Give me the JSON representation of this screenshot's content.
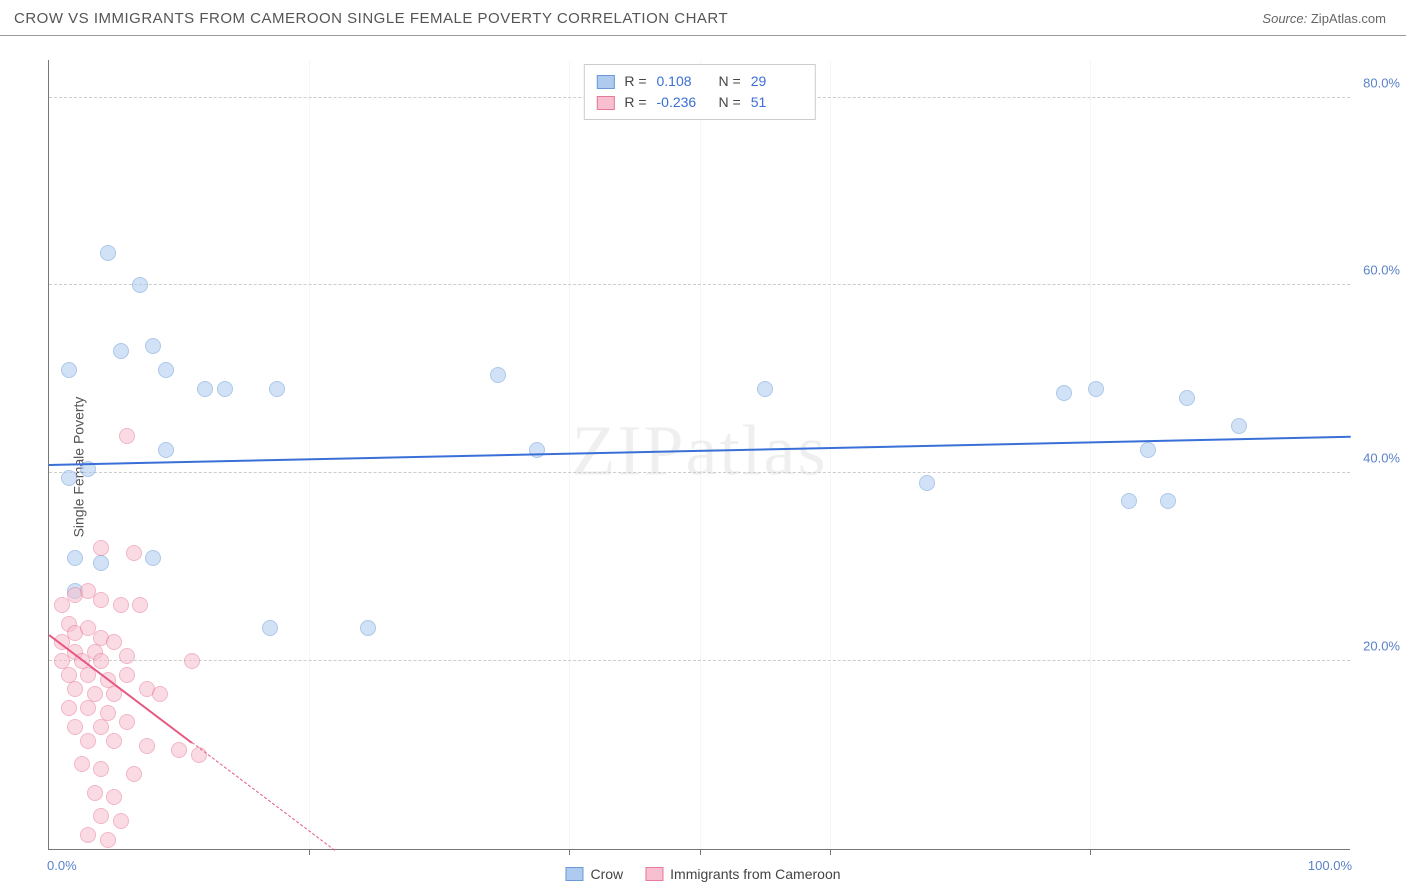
{
  "header": {
    "title": "CROW VS IMMIGRANTS FROM CAMEROON SINGLE FEMALE POVERTY CORRELATION CHART",
    "source_label": "Source:",
    "source_value": "ZipAtlas.com"
  },
  "ylabel": "Single Female Poverty",
  "watermark": "ZIPatlas",
  "chart": {
    "type": "scatter",
    "xlim": [
      0,
      100
    ],
    "ylim": [
      0,
      84
    ],
    "x_ticks_minor": [
      20,
      40,
      50,
      60,
      80
    ],
    "y_ticks": [
      20,
      40,
      60,
      80
    ],
    "y_tick_labels": [
      "20.0%",
      "40.0%",
      "60.0%",
      "80.0%"
    ],
    "x_min_label": "0.0%",
    "x_max_label": "100.0%",
    "background_color": "#ffffff",
    "grid_color": "#cccccc",
    "axis_color": "#777777",
    "tick_label_color": "#5a82c9",
    "marker_radius": 8,
    "marker_opacity": 0.55,
    "series": [
      {
        "key": "crow",
        "label": "Crow",
        "fill": "#aecbef",
        "stroke": "#6a9ad9",
        "line_color": "#3a6fd8",
        "R": "0.108",
        "N": "29",
        "trend": {
          "x1": 0,
          "y1": 41.0,
          "x2": 100,
          "y2": 44.0,
          "solid_until_x": 100
        },
        "points": [
          [
            4.5,
            63.5
          ],
          [
            7.0,
            60.0
          ],
          [
            5.5,
            53.0
          ],
          [
            8.0,
            53.5
          ],
          [
            9.0,
            51.0
          ],
          [
            12.0,
            49.0
          ],
          [
            13.5,
            49.0
          ],
          [
            17.5,
            49.0
          ],
          [
            34.5,
            50.5
          ],
          [
            37.5,
            42.5
          ],
          [
            1.5,
            39.5
          ],
          [
            3.0,
            40.5
          ],
          [
            9.0,
            42.5
          ],
          [
            2.0,
            31.0
          ],
          [
            4.0,
            30.5
          ],
          [
            8.0,
            31.0
          ],
          [
            2.0,
            27.5
          ],
          [
            17.0,
            23.5
          ],
          [
            24.5,
            23.5
          ],
          [
            55.0,
            49.0
          ],
          [
            67.5,
            39.0
          ],
          [
            78.0,
            48.5
          ],
          [
            80.5,
            49.0
          ],
          [
            83.0,
            37.0
          ],
          [
            86.0,
            37.0
          ],
          [
            84.5,
            42.5
          ],
          [
            87.5,
            48.0
          ],
          [
            91.5,
            45.0
          ],
          [
            1.5,
            51.0
          ]
        ]
      },
      {
        "key": "cameroon",
        "label": "Immigrants from Cameroon",
        "fill": "#f7bfcf",
        "stroke": "#e77a9a",
        "line_color": "#e9567f",
        "R": "-0.236",
        "N": "51",
        "trend": {
          "x1": 0,
          "y1": 23.0,
          "x2": 22,
          "y2": 0.0,
          "solid_until_x": 11
        },
        "points": [
          [
            6.0,
            44.0
          ],
          [
            4.0,
            32.0
          ],
          [
            6.5,
            31.5
          ],
          [
            2.0,
            27.0
          ],
          [
            3.0,
            27.5
          ],
          [
            1.0,
            26.0
          ],
          [
            4.0,
            26.5
          ],
          [
            5.5,
            26.0
          ],
          [
            7.0,
            26.0
          ],
          [
            1.5,
            24.0
          ],
          [
            2.0,
            23.0
          ],
          [
            3.0,
            23.5
          ],
          [
            4.0,
            22.5
          ],
          [
            5.0,
            22.0
          ],
          [
            2.0,
            21.0
          ],
          [
            3.5,
            21.0
          ],
          [
            1.0,
            20.0
          ],
          [
            2.5,
            20.0
          ],
          [
            4.0,
            20.0
          ],
          [
            6.0,
            20.5
          ],
          [
            11.0,
            20.0
          ],
          [
            1.5,
            18.5
          ],
          [
            3.0,
            18.5
          ],
          [
            4.5,
            18.0
          ],
          [
            6.0,
            18.5
          ],
          [
            2.0,
            17.0
          ],
          [
            3.5,
            16.5
          ],
          [
            5.0,
            16.5
          ],
          [
            7.5,
            17.0
          ],
          [
            8.5,
            16.5
          ],
          [
            1.5,
            15.0
          ],
          [
            3.0,
            15.0
          ],
          [
            4.5,
            14.5
          ],
          [
            2.0,
            13.0
          ],
          [
            4.0,
            13.0
          ],
          [
            6.0,
            13.5
          ],
          [
            3.0,
            11.5
          ],
          [
            5.0,
            11.5
          ],
          [
            7.5,
            11.0
          ],
          [
            10.0,
            10.5
          ],
          [
            11.5,
            10.0
          ],
          [
            2.5,
            9.0
          ],
          [
            4.0,
            8.5
          ],
          [
            6.5,
            8.0
          ],
          [
            3.5,
            6.0
          ],
          [
            5.0,
            5.5
          ],
          [
            4.0,
            3.5
          ],
          [
            5.5,
            3.0
          ],
          [
            3.0,
            1.5
          ],
          [
            4.5,
            1.0
          ],
          [
            1.0,
            22.0
          ]
        ]
      }
    ]
  },
  "legend_top": {
    "r_label": "R =",
    "n_label": "N ="
  }
}
